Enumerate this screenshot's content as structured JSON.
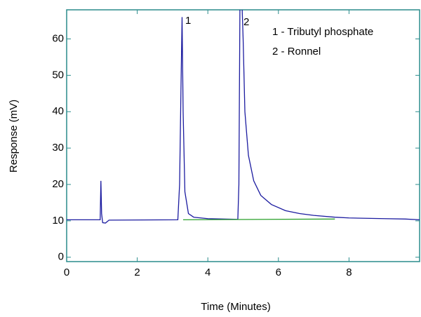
{
  "chart_data": {
    "type": "line",
    "x_label": "Time (Minutes)",
    "y_label": "Response (mV)",
    "annotations": [
      "1",
      "2",
      "1 - Tributyl phosphate",
      "2 - Ronnel"
    ],
    "xlim": [
      0,
      10
    ],
    "ylim": [
      -1.2,
      68
    ],
    "xticks": [
      0,
      2,
      4,
      6,
      8
    ],
    "yticks": [
      0,
      10,
      20,
      30,
      40,
      50,
      60
    ],
    "axis_color": "#2a8c8c",
    "series": [
      {
        "color": "#1c1ca0",
        "x": [
          0,
          0.95,
          0.97,
          0.99,
          1.02,
          1.1,
          1.2,
          3.15,
          3.2,
          3.24,
          3.27,
          3.3,
          3.35,
          3.45,
          3.6,
          4.0,
          4.85,
          4.88,
          4.91,
          4.95,
          5.0,
          5.05,
          5.15,
          5.3,
          5.5,
          5.8,
          6.2,
          6.6,
          7.0,
          7.6,
          8.0,
          9.0,
          9.6,
          10
        ],
        "values": [
          10.3,
          10.3,
          21,
          12,
          9.5,
          9.4,
          10.2,
          10.3,
          20,
          47,
          66,
          40,
          18,
          12,
          11,
          10.6,
          10.4,
          20,
          70,
          75,
          60,
          40,
          28,
          21,
          17,
          14.5,
          12.8,
          12,
          11.5,
          11,
          10.8,
          10.6,
          10.5,
          10.3
        ]
      },
      {
        "color": "#2aa02a",
        "x": [
          3.3,
          7.6
        ],
        "values": [
          10.3,
          10.5
        ]
      }
    ]
  }
}
